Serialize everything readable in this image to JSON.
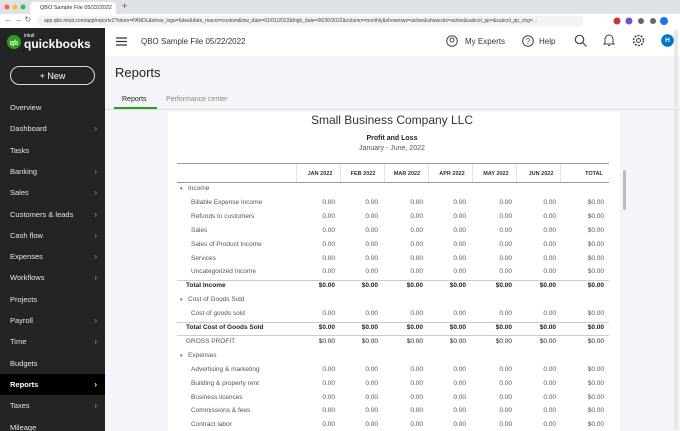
{
  "browser": {
    "tab_title": "QBO Sample File 05/22/2022",
    "url": "app.qbo.intuit.com/app/reportv2?token=PANDL&show_logo=false&date_macro=custom&low_date=01/01/2022&high_date=06/30/2022&column=monthly&showrows=active&showcols=active&subcol_pp=&subcol_pp_chg=..."
  },
  "sidebar": {
    "brand_small": "intuit",
    "brand": "quickbooks",
    "new_button": "+ New",
    "nav": [
      {
        "label": "Overview",
        "arrow": false
      },
      {
        "label": "Dashboard",
        "arrow": true
      },
      {
        "label": "Tasks",
        "arrow": false
      },
      {
        "label": "Banking",
        "arrow": true
      },
      {
        "label": "Sales",
        "arrow": true
      },
      {
        "label": "Customers & leads",
        "arrow": true
      },
      {
        "label": "Cash flow",
        "arrow": true
      },
      {
        "label": "Expenses",
        "arrow": true
      },
      {
        "label": "Workflows",
        "arrow": true
      },
      {
        "label": "Projects",
        "arrow": false
      },
      {
        "label": "Payroll",
        "arrow": true
      },
      {
        "label": "Time",
        "arrow": true
      },
      {
        "label": "Budgets",
        "arrow": false
      },
      {
        "label": "Reports",
        "arrow": true,
        "active": true
      },
      {
        "label": "Taxes",
        "arrow": true
      },
      {
        "label": "Mileage",
        "arrow": false
      }
    ]
  },
  "header": {
    "company_file": "QBO Sample File 05/22/2022",
    "my_experts": "My Experts",
    "help": "Help",
    "avatar": "H"
  },
  "page": {
    "title": "Reports",
    "tabs": [
      "Reports",
      "Performance center"
    ]
  },
  "report": {
    "company": "Small Business Company LLC",
    "title": "Profit and Loss",
    "period": "January - June, 2022",
    "columns": [
      "JAN 2022",
      "FEB 2022",
      "MAR 2022",
      "APR 2022",
      "MAY 2022",
      "JUN 2022",
      "TOTAL"
    ],
    "rows": [
      {
        "label": "Income",
        "kind": "section"
      },
      {
        "label": "Billable Expense Income",
        "kind": "item",
        "values": [
          "0.00",
          "0.00",
          "0.00",
          "0.00",
          "0.00",
          "0.00",
          "$0.00"
        ]
      },
      {
        "label": "Refunds to customers",
        "kind": "item",
        "values": [
          "0.00",
          "0.00",
          "0.00",
          "0.00",
          "0.00",
          "0.00",
          "$0.00"
        ]
      },
      {
        "label": "Sales",
        "kind": "item",
        "values": [
          "0.00",
          "0.00",
          "0.00",
          "0.00",
          "0.00",
          "0.00",
          "$0.00"
        ]
      },
      {
        "label": "Sales of Product Income",
        "kind": "item",
        "values": [
          "0.00",
          "0.00",
          "0.00",
          "0.00",
          "0.00",
          "0.00",
          "$0.00"
        ]
      },
      {
        "label": "Services",
        "kind": "item",
        "values": [
          "0.00",
          "0.00",
          "0.00",
          "0.00",
          "0.00",
          "0.00",
          "$0.00"
        ]
      },
      {
        "label": "Uncategorized Income",
        "kind": "item",
        "values": [
          "0.00",
          "0.00",
          "0.00",
          "0.00",
          "0.00",
          "0.00",
          "$0.00"
        ]
      },
      {
        "label": "Total Income",
        "kind": "total",
        "values": [
          "$0.00",
          "$0.00",
          "$0.00",
          "$0.00",
          "$0.00",
          "$0.00",
          "$0.00"
        ]
      },
      {
        "label": "Cost of Goods Sold",
        "kind": "section"
      },
      {
        "label": "Cost of goods sold",
        "kind": "item",
        "values": [
          "0.00",
          "0.00",
          "0.00",
          "0.00",
          "0.00",
          "0.00",
          "$0.00"
        ]
      },
      {
        "label": "Total Cost of Goods Sold",
        "kind": "total",
        "values": [
          "$0.00",
          "$0.00",
          "$0.00",
          "$0.00",
          "$0.00",
          "$0.00",
          "$0.00"
        ]
      },
      {
        "label": "GROSS PROFIT",
        "kind": "summary",
        "values": [
          "$0.00",
          "$0.00",
          "$0.00",
          "$0.00",
          "$0.00",
          "$0.00",
          "$0.00"
        ]
      },
      {
        "label": "Expenses",
        "kind": "section"
      },
      {
        "label": "Advertising & marketing",
        "kind": "item",
        "values": [
          "0.00",
          "0.00",
          "0.00",
          "0.00",
          "0.00",
          "0.00",
          "$0.00"
        ]
      },
      {
        "label": "Building & property rent",
        "kind": "item",
        "values": [
          "0.00",
          "0.00",
          "0.00",
          "0.00",
          "0.00",
          "0.00",
          "$0.00"
        ]
      },
      {
        "label": "Business licences",
        "kind": "item",
        "values": [
          "0.00",
          "0.00",
          "0.00",
          "0.00",
          "0.00",
          "0.00",
          "$0.00"
        ]
      },
      {
        "label": "Commissions & fees",
        "kind": "item",
        "values": [
          "0.00",
          "0.00",
          "0.00",
          "0.00",
          "0.00",
          "0.00",
          "$0.00"
        ]
      },
      {
        "label": "Contract labor",
        "kind": "item",
        "values": [
          "0.00",
          "0.00",
          "0.00",
          "0.00",
          "0.00",
          "0.00",
          "$0.00"
        ]
      }
    ]
  }
}
